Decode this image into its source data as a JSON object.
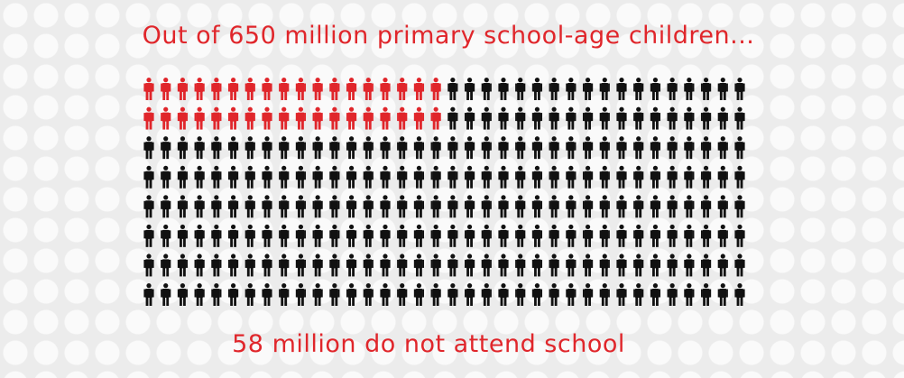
{
  "title": "Out of 650 million primary school-age children...",
  "caption": "58 million do not attend school",
  "pictogram": {
    "rows": 8,
    "columns": 36,
    "highlighted_per_row": [
      18,
      18,
      0,
      0,
      0,
      0,
      0,
      0
    ],
    "highlight_color": "#e0262b",
    "base_color": "#111111"
  }
}
